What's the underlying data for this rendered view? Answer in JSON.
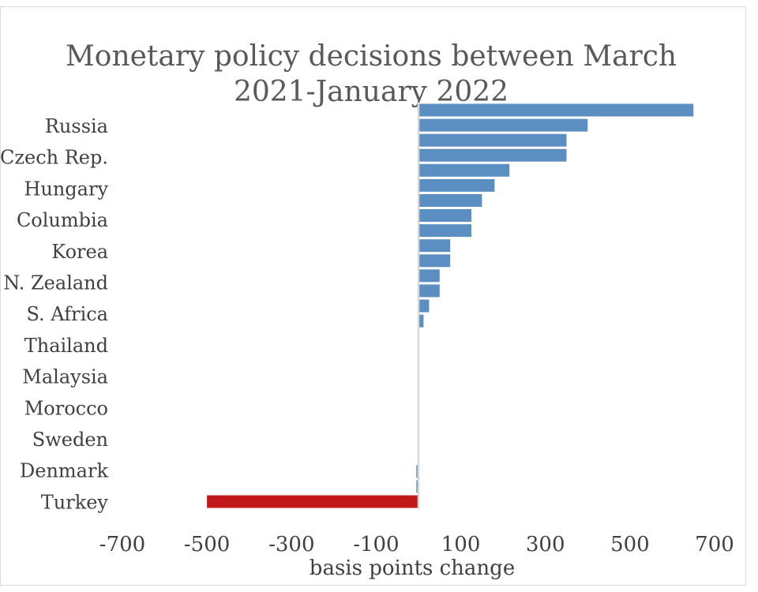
{
  "chart_data": {
    "type": "bar",
    "orientation": "horizontal",
    "title": [
      "Monetary policy decisions between March",
      "2021-January 2022"
    ],
    "xlabel": "basis points change",
    "ylabel": "",
    "xlim": [
      -700,
      700
    ],
    "xticks": [
      "-700",
      "-500",
      "-300",
      "-100",
      "100",
      "300",
      "500",
      "700"
    ],
    "category_labels": [
      "Russia",
      "Czech Rep.",
      "Hungary",
      "Columbia",
      "Korea",
      "N. Zealand",
      "S. Africa",
      "Thailand",
      "Malaysia",
      "Morocco",
      "Sweden",
      "Denmark",
      "Turkey"
    ],
    "bars": [
      650,
      400,
      350,
      350,
      215,
      180,
      150,
      125,
      125,
      75,
      75,
      50,
      50,
      25,
      12,
      0,
      0,
      0,
      0,
      0,
      0,
      0,
      0,
      0,
      -5,
      -5,
      -500
    ],
    "grid": false,
    "legend": "none",
    "colors": {
      "positive": "#5b8fc1",
      "negative": "#c0181b",
      "axis": "#d9d9d9"
    }
  }
}
